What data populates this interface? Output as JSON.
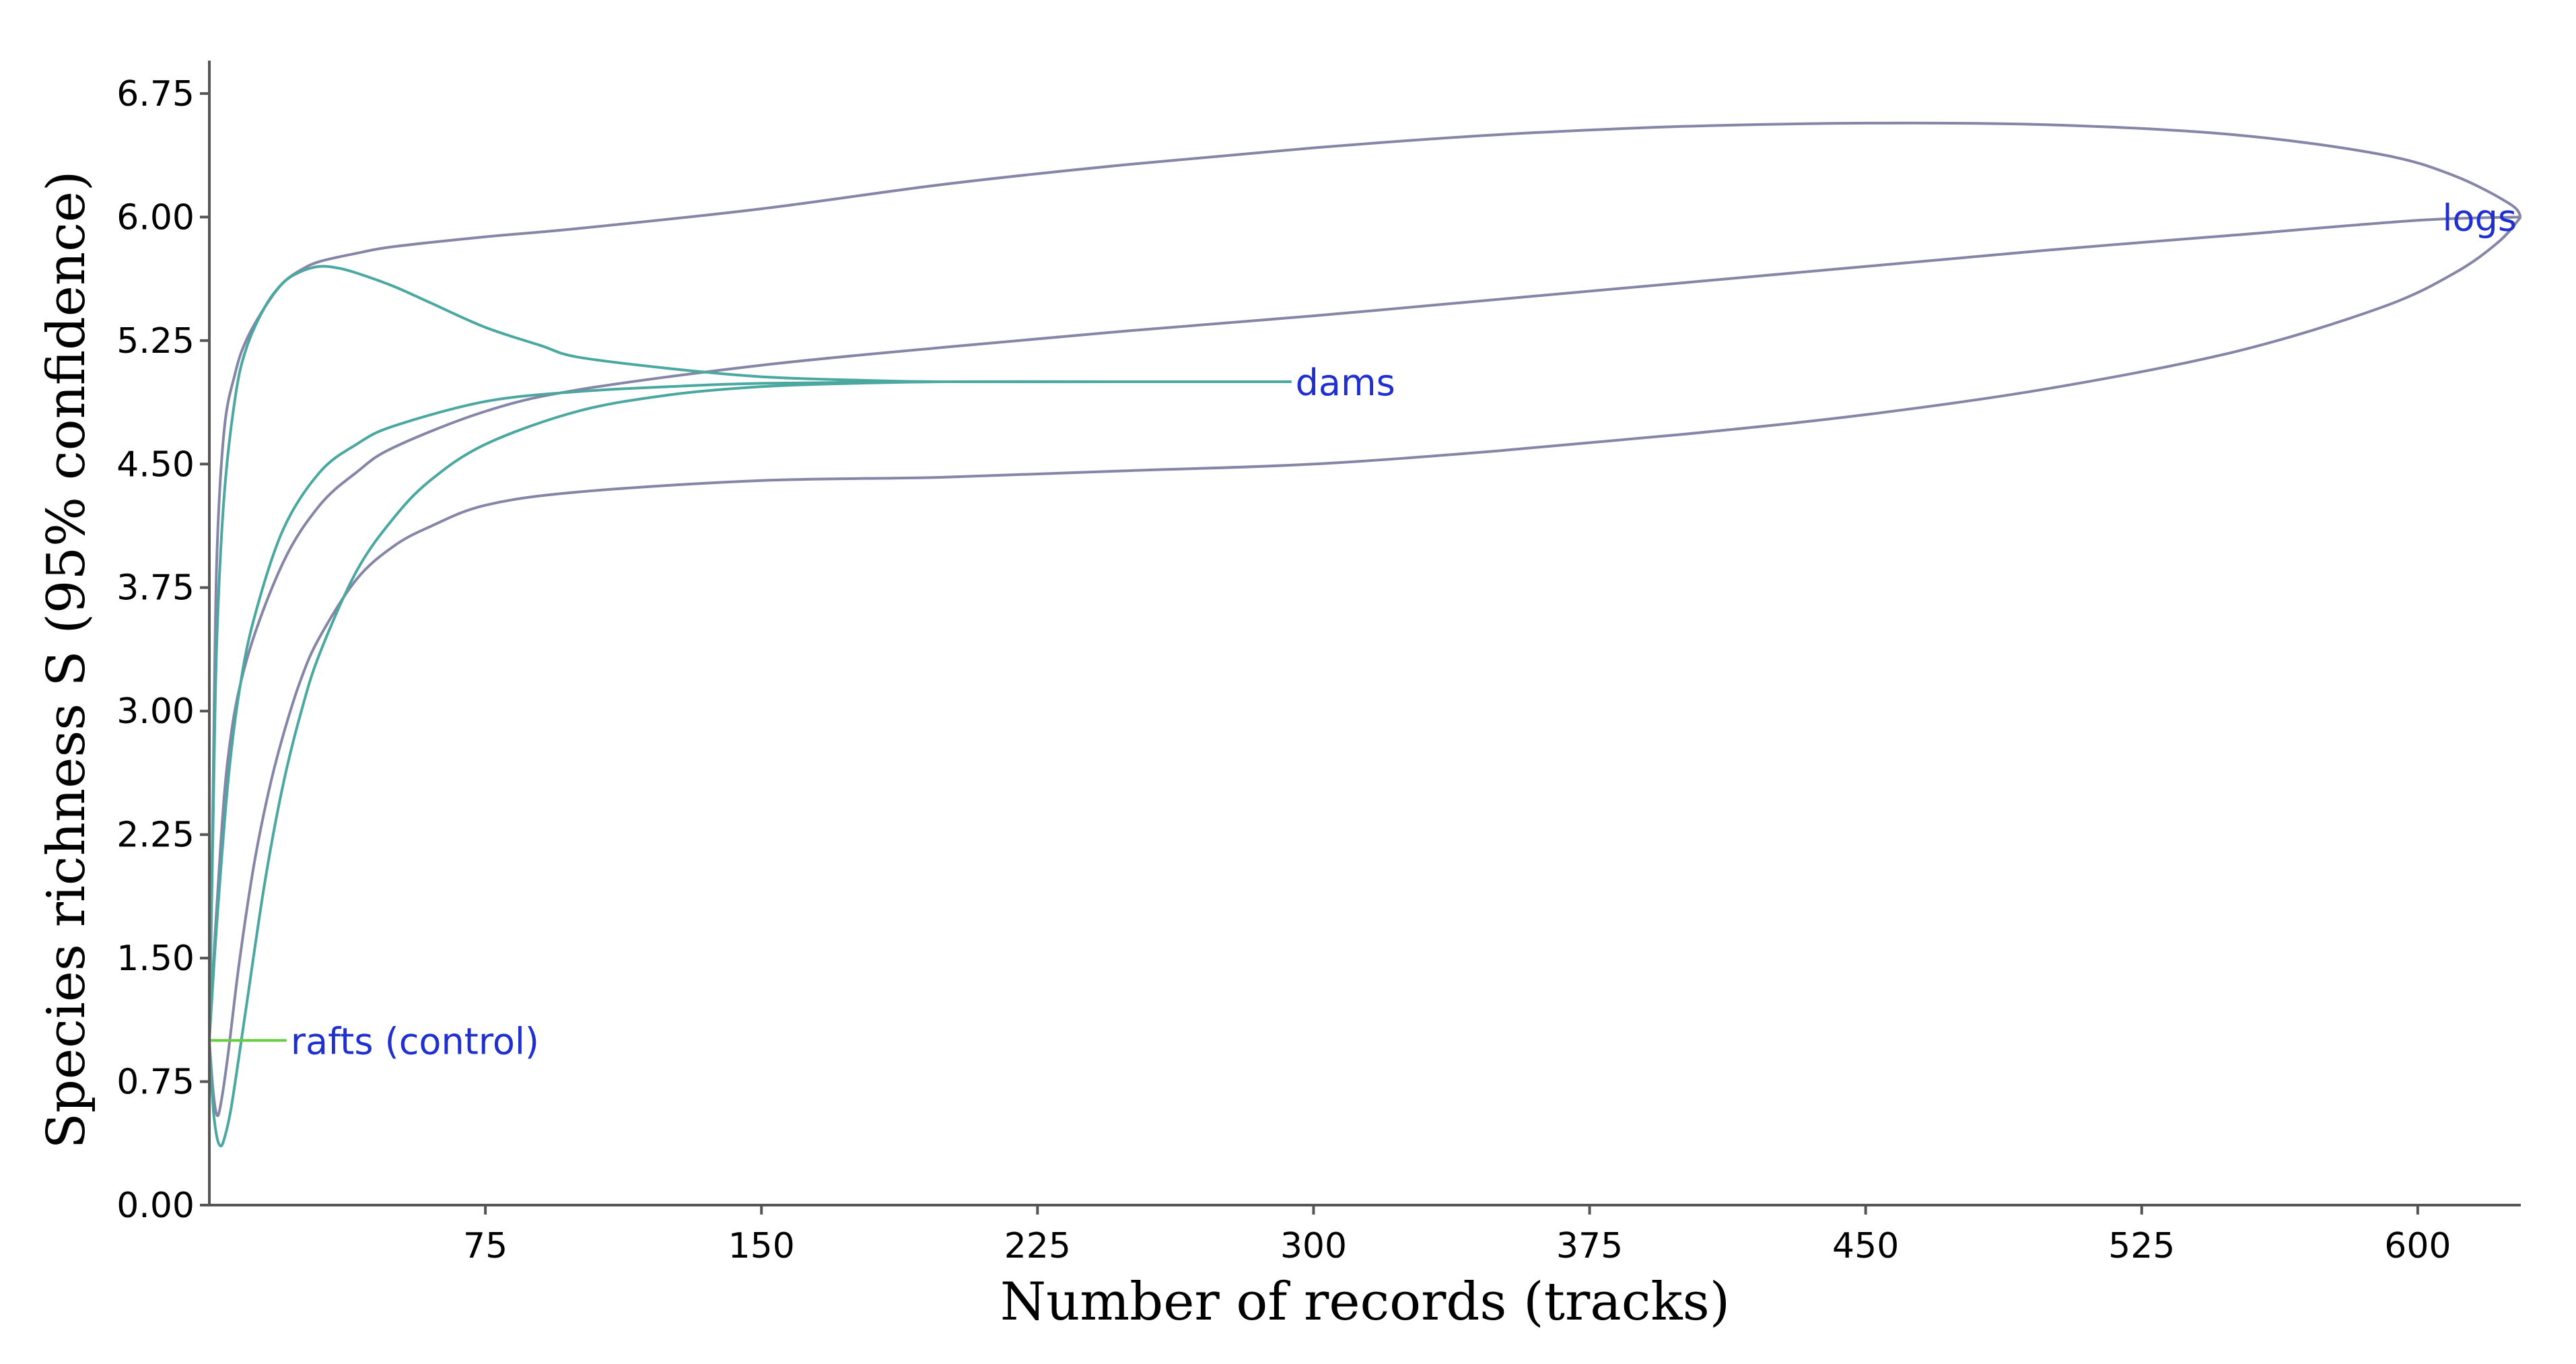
{
  "chart_data": {
    "type": "line",
    "title": "",
    "xlabel": "Number of records (tracks)",
    "ylabel": "Species richness S (95% confidence)",
    "xlim": [
      0,
      628
    ],
    "ylim": [
      0,
      6.95
    ],
    "xticks": [
      75,
      150,
      225,
      300,
      375,
      450,
      525,
      600
    ],
    "xtick_labels": [
      "75",
      "150",
      "225",
      "300",
      "375",
      "450",
      "525",
      "600"
    ],
    "yticks": [
      0,
      0.75,
      1.5,
      2.25,
      3.0,
      3.75,
      4.5,
      5.25,
      6.0,
      6.75
    ],
    "ytick_labels": [
      "0.00",
      "0.75",
      "1.50",
      "2.25",
      "3.00",
      "3.75",
      "4.50",
      "5.25",
      "6.00",
      "6.75"
    ],
    "grid": false,
    "legend": "none",
    "series": [
      {
        "name": "logs",
        "color": "#2030d0",
        "line_color": "#8585a8",
        "band": "confidence",
        "x_max": 628,
        "mean": [
          [
            0,
            1.0
          ],
          [
            2,
            1.8
          ],
          [
            5,
            2.7
          ],
          [
            10,
            3.3
          ],
          [
            20,
            3.9
          ],
          [
            30,
            4.25
          ],
          [
            40,
            4.45
          ],
          [
            50,
            4.6
          ],
          [
            75,
            4.82
          ],
          [
            100,
            4.95
          ],
          [
            150,
            5.1
          ],
          [
            200,
            5.21
          ],
          [
            250,
            5.31
          ],
          [
            300,
            5.4
          ],
          [
            350,
            5.5
          ],
          [
            400,
            5.6
          ],
          [
            450,
            5.7
          ],
          [
            500,
            5.8
          ],
          [
            550,
            5.89
          ],
          [
            600,
            5.98
          ],
          [
            628,
            6.0
          ]
        ],
        "upper": [
          [
            0,
            1.0
          ],
          [
            1,
            2.5
          ],
          [
            2,
            3.9
          ],
          [
            4,
            4.7
          ],
          [
            7,
            5.05
          ],
          [
            10,
            5.25
          ],
          [
            15,
            5.45
          ],
          [
            20,
            5.6
          ],
          [
            25,
            5.68
          ],
          [
            30,
            5.73
          ],
          [
            40,
            5.78
          ],
          [
            50,
            5.82
          ],
          [
            75,
            5.88
          ],
          [
            100,
            5.93
          ],
          [
            150,
            6.05
          ],
          [
            200,
            6.2
          ],
          [
            250,
            6.32
          ],
          [
            300,
            6.42
          ],
          [
            350,
            6.5
          ],
          [
            400,
            6.55
          ],
          [
            450,
            6.57
          ],
          [
            500,
            6.56
          ],
          [
            550,
            6.5
          ],
          [
            590,
            6.38
          ],
          [
            610,
            6.25
          ],
          [
            625,
            6.08
          ],
          [
            628,
            6.0
          ]
        ],
        "lower": [
          [
            0,
            1.0
          ],
          [
            1,
            0.7
          ],
          [
            2,
            0.55
          ],
          [
            3,
            0.6
          ],
          [
            5,
            0.9
          ],
          [
            8,
            1.45
          ],
          [
            12,
            2.05
          ],
          [
            16,
            2.5
          ],
          [
            20,
            2.85
          ],
          [
            25,
            3.2
          ],
          [
            30,
            3.45
          ],
          [
            40,
            3.8
          ],
          [
            50,
            4.0
          ],
          [
            60,
            4.12
          ],
          [
            75,
            4.25
          ],
          [
            100,
            4.33
          ],
          [
            150,
            4.4
          ],
          [
            200,
            4.42
          ],
          [
            250,
            4.46
          ],
          [
            300,
            4.5
          ],
          [
            350,
            4.58
          ],
          [
            400,
            4.68
          ],
          [
            450,
            4.8
          ],
          [
            500,
            4.96
          ],
          [
            550,
            5.18
          ],
          [
            590,
            5.45
          ],
          [
            610,
            5.66
          ],
          [
            622,
            5.85
          ],
          [
            628,
            6.0
          ]
        ]
      },
      {
        "name": "dams",
        "color": "#2030d0",
        "line_color": "#4aa8a0",
        "band": "confidence",
        "x_max": 294,
        "mean": [
          [
            0,
            1.0
          ],
          [
            2,
            1.7
          ],
          [
            5,
            2.55
          ],
          [
            8,
            3.1
          ],
          [
            12,
            3.55
          ],
          [
            20,
            4.1
          ],
          [
            30,
            4.45
          ],
          [
            40,
            4.62
          ],
          [
            50,
            4.73
          ],
          [
            75,
            4.88
          ],
          [
            100,
            4.94
          ],
          [
            125,
            4.97
          ],
          [
            150,
            4.99
          ],
          [
            200,
            5.0
          ],
          [
            250,
            5.0
          ],
          [
            294,
            5.0
          ]
        ],
        "upper": [
          [
            0,
            1.0
          ],
          [
            1,
            2.3
          ],
          [
            2,
            3.4
          ],
          [
            4,
            4.3
          ],
          [
            7,
            4.9
          ],
          [
            10,
            5.2
          ],
          [
            15,
            5.45
          ],
          [
            20,
            5.6
          ],
          [
            25,
            5.67
          ],
          [
            30,
            5.7
          ],
          [
            35,
            5.69
          ],
          [
            40,
            5.66
          ],
          [
            50,
            5.58
          ],
          [
            60,
            5.48
          ],
          [
            75,
            5.33
          ],
          [
            90,
            5.22
          ],
          [
            100,
            5.15
          ],
          [
            125,
            5.08
          ],
          [
            150,
            5.03
          ],
          [
            175,
            5.01
          ],
          [
            200,
            5.0
          ],
          [
            250,
            5.0
          ],
          [
            294,
            5.0
          ]
        ],
        "lower": [
          [
            0,
            1.0
          ],
          [
            1,
            0.6
          ],
          [
            2,
            0.42
          ],
          [
            3,
            0.36
          ],
          [
            4,
            0.4
          ],
          [
            6,
            0.6
          ],
          [
            10,
            1.2
          ],
          [
            15,
            1.95
          ],
          [
            20,
            2.55
          ],
          [
            25,
            3.0
          ],
          [
            30,
            3.35
          ],
          [
            40,
            3.85
          ],
          [
            50,
            4.17
          ],
          [
            60,
            4.4
          ],
          [
            75,
            4.62
          ],
          [
            100,
            4.82
          ],
          [
            125,
            4.92
          ],
          [
            150,
            4.97
          ],
          [
            175,
            4.99
          ],
          [
            200,
            5.0
          ],
          [
            250,
            5.0
          ],
          [
            294,
            5.0
          ]
        ]
      },
      {
        "name": "rafts (control)",
        "color": "#2030d0",
        "line_color": "#66cc44",
        "band": "none",
        "x_max": 21,
        "mean": [
          [
            0,
            1.0
          ],
          [
            21,
            1.0
          ]
        ]
      }
    ]
  }
}
